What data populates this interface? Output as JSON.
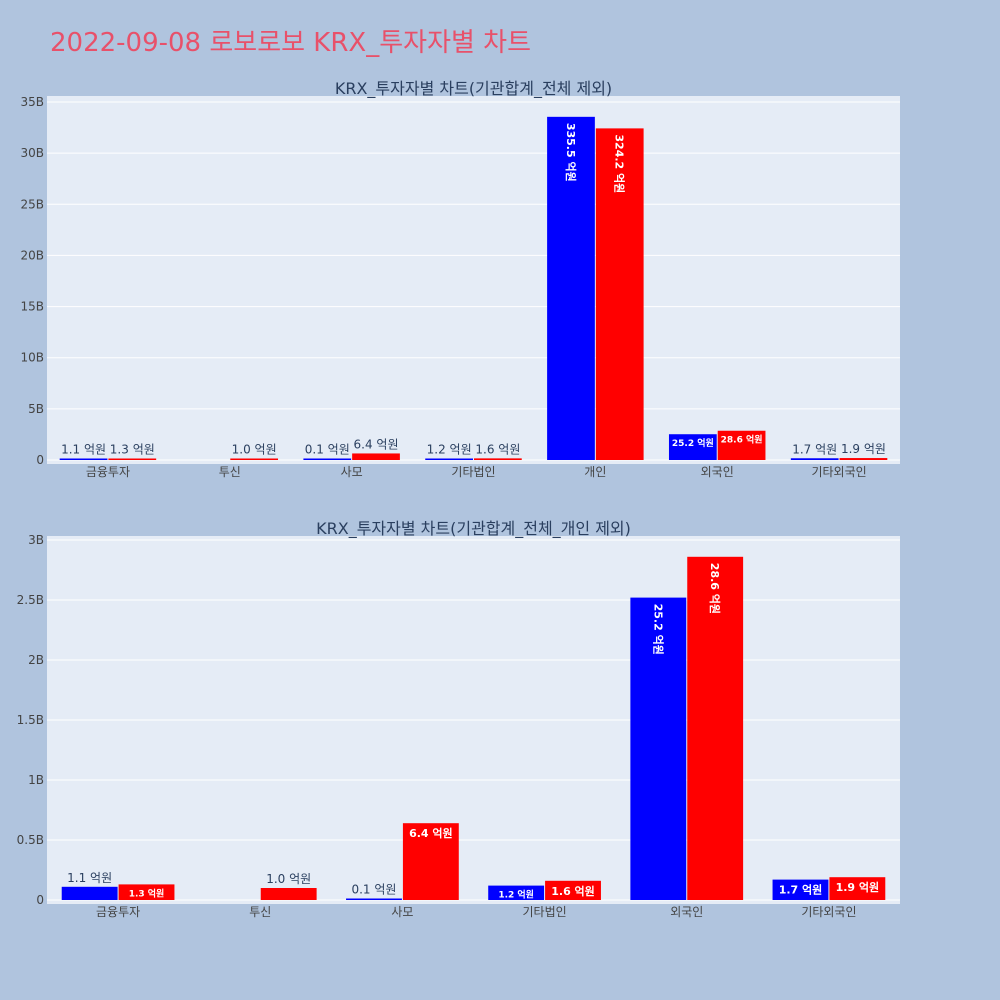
{
  "page": {
    "title": "2022-09-08 로보로보 KRX_투자자별 차트"
  },
  "colors": {
    "background": "#b0c4de",
    "plot_bg": "#e5ecf6",
    "grid": "#ffffff",
    "buy": "#0000ff",
    "sell": "#ff0000",
    "title": "#e8516a"
  },
  "chart_data": [
    {
      "type": "bar",
      "title": "KRX_투자자별 차트(기관합계_전체 제외)",
      "categories": [
        "금융투자",
        "투신",
        "사모",
        "기타법인",
        "개인",
        "외국인",
        "기타외국인"
      ],
      "ylim": [
        0,
        35000000000
      ],
      "yticks": [
        0,
        5000000000,
        10000000000,
        15000000000,
        20000000000,
        25000000000,
        30000000000,
        35000000000
      ],
      "ytick_labels": [
        "0",
        "5B",
        "10B",
        "15B",
        "20B",
        "25B",
        "30B",
        "35B"
      ],
      "grid": true,
      "series": [
        {
          "color": "#0000ff",
          "values": [
            110000000,
            0,
            10000000,
            120000000,
            33550000000,
            2520000000,
            170000000
          ],
          "labels": [
            "1.1 억원",
            "",
            "0.1 억원",
            "1.2 억원",
            "335.5 억원",
            "25.2 억원",
            "1.7 억원"
          ]
        },
        {
          "color": "#ff0000",
          "values": [
            130000000,
            100000000,
            640000000,
            160000000,
            32420000000,
            2860000000,
            190000000
          ],
          "labels": [
            "1.3 억원",
            "1.0 억원",
            "6.4 억원",
            "1.6 억원",
            "324.2 억원",
            "28.6 억원",
            "1.9 억원"
          ]
        }
      ]
    },
    {
      "type": "bar",
      "title": "KRX_투자자별 차트(기관합계_전체_개인 제외)",
      "categories": [
        "금융투자",
        "투신",
        "사모",
        "기타법인",
        "외국인",
        "기타외국인"
      ],
      "ylim": [
        0,
        3000000000
      ],
      "yticks": [
        0,
        500000000,
        1000000000,
        1500000000,
        2000000000,
        2500000000,
        3000000000
      ],
      "ytick_labels": [
        "0",
        "0.5B",
        "1B",
        "1.5B",
        "2B",
        "2.5B",
        "3B"
      ],
      "grid": true,
      "series": [
        {
          "color": "#0000ff",
          "values": [
            110000000,
            0,
            10000000,
            120000000,
            2520000000,
            170000000
          ],
          "labels": [
            "1.1 억원",
            "",
            "0.1 억원",
            "1.2 억원",
            "25.2 억원",
            "1.7 억원"
          ]
        },
        {
          "color": "#ff0000",
          "values": [
            130000000,
            100000000,
            640000000,
            160000000,
            2860000000,
            190000000
          ],
          "labels": [
            "1.3 억원",
            "1.0 억원",
            "6.4 억원",
            "1.6 억원",
            "28.6 억원",
            "1.9 억원"
          ]
        }
      ]
    }
  ]
}
